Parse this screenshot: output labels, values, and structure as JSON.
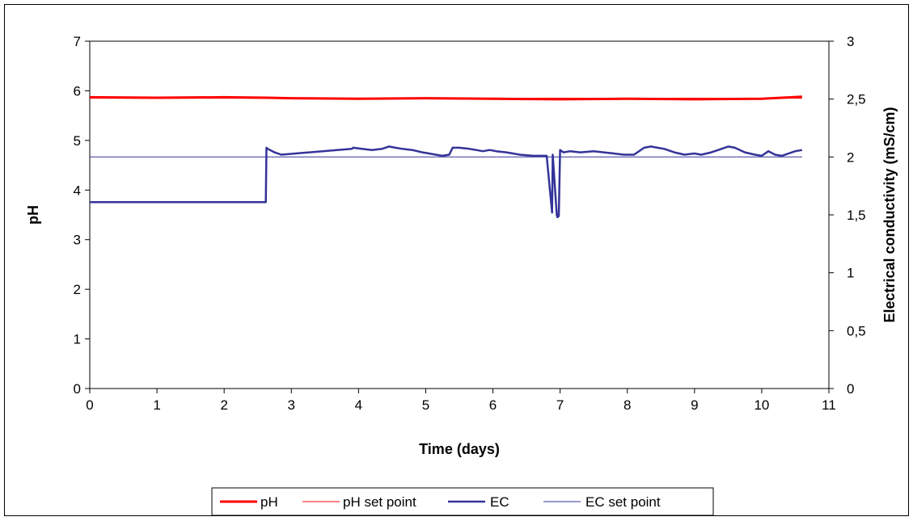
{
  "chart_data": {
    "type": "line",
    "title": "",
    "xlabel": "Time (days)",
    "ylabel": "pH",
    "y2label": "Electrical conductivity (mS/cm)",
    "xlim": [
      0,
      11
    ],
    "ylim": [
      0,
      7
    ],
    "y2lim": [
      0,
      3
    ],
    "x_ticks": [
      "0",
      "1",
      "2",
      "3",
      "4",
      "5",
      "6",
      "7",
      "8",
      "9",
      "10",
      "11"
    ],
    "y_ticks": [
      "0",
      "1",
      "2",
      "3",
      "4",
      "5",
      "6",
      "7"
    ],
    "y2_ticks": [
      "0",
      "0,5",
      "1",
      "1,5",
      "2",
      "2,5",
      "3"
    ],
    "grid": false,
    "legend_position": "bottom",
    "legend": [
      "pH",
      "pH set point",
      "EC",
      "EC set point"
    ],
    "series": [
      {
        "name": "pH",
        "axis": "left",
        "color": "#ff0000",
        "width": 3,
        "x": [
          0,
          1,
          2,
          2.65,
          3,
          4,
          5,
          6,
          7,
          8,
          9,
          10,
          10.6
        ],
        "y": [
          5.87,
          5.86,
          5.87,
          5.86,
          5.85,
          5.84,
          5.85,
          5.84,
          5.83,
          5.84,
          5.83,
          5.84,
          5.88
        ]
      },
      {
        "name": "pH set point",
        "axis": "left",
        "color": "#ff0000",
        "width": 1,
        "x": [
          0,
          10.6
        ],
        "y": [
          5.85,
          5.85
        ]
      },
      {
        "name": "EC",
        "axis": "right",
        "color": "#333399",
        "width": 2.5,
        "x": [
          0,
          2.62,
          2.63,
          2.65,
          2.75,
          2.85,
          3.9,
          3.92,
          4.05,
          4.2,
          4.35,
          4.45,
          4.55,
          4.65,
          4.8,
          4.95,
          5.05,
          5.15,
          5.25,
          5.35,
          5.4,
          5.5,
          5.65,
          5.75,
          5.85,
          5.95,
          6.05,
          6.2,
          6.4,
          6.6,
          6.8,
          6.88,
          6.89,
          6.95,
          6.96,
          6.98,
          7.0,
          7.05,
          7.15,
          7.3,
          7.5,
          7.65,
          7.8,
          7.95,
          8.1,
          8.25,
          8.35,
          8.45,
          8.55,
          8.7,
          8.85,
          9.0,
          9.1,
          9.25,
          9.4,
          9.5,
          9.6,
          9.75,
          9.9,
          10.0,
          10.1,
          10.2,
          10.3,
          10.4,
          10.5,
          10.6
        ],
        "y": [
          1.61,
          1.61,
          2.08,
          2.07,
          2.04,
          2.02,
          2.07,
          2.08,
          2.07,
          2.06,
          2.07,
          2.09,
          2.08,
          2.07,
          2.06,
          2.04,
          2.03,
          2.02,
          2.01,
          2.02,
          2.08,
          2.08,
          2.07,
          2.06,
          2.05,
          2.06,
          2.05,
          2.04,
          2.02,
          2.01,
          2.01,
          1.52,
          2.02,
          1.5,
          1.48,
          1.49,
          2.06,
          2.04,
          2.05,
          2.04,
          2.05,
          2.04,
          2.03,
          2.02,
          2.02,
          2.08,
          2.09,
          2.08,
          2.07,
          2.04,
          2.02,
          2.03,
          2.02,
          2.04,
          2.07,
          2.09,
          2.08,
          2.04,
          2.02,
          2.01,
          2.05,
          2.02,
          2.01,
          2.03,
          2.05,
          2.06
        ]
      },
      {
        "name": "EC set point",
        "axis": "right",
        "color": "#333399",
        "width": 1,
        "x": [
          0,
          10.6
        ],
        "y": [
          2.0,
          2.0
        ]
      }
    ]
  }
}
